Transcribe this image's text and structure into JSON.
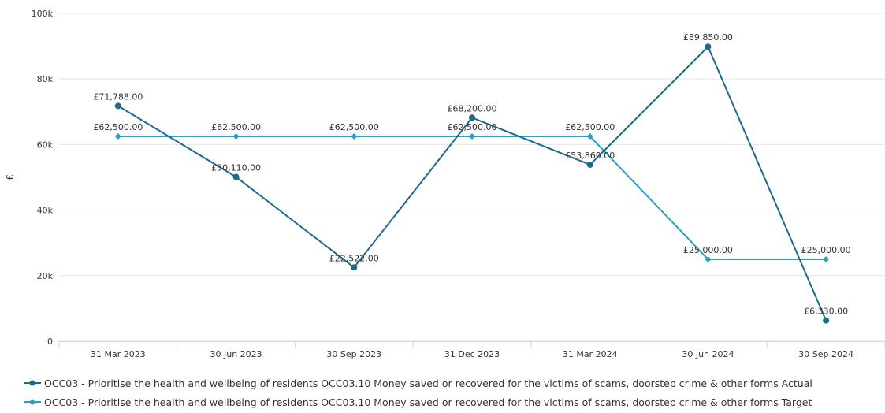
{
  "chart_data": {
    "type": "line",
    "title": "",
    "xlabel": "",
    "ylabel": "£",
    "categories": [
      "31 Mar 2023",
      "30 Jun 2023",
      "30 Sep 2023",
      "31 Dec 2023",
      "31 Mar 2024",
      "30 Jun 2024",
      "30 Sep 2024"
    ],
    "ylim": [
      0,
      100000
    ],
    "y_ticks": [
      0,
      20000,
      40000,
      60000,
      80000,
      100000
    ],
    "y_tick_labels": [
      "0",
      "20k",
      "40k",
      "60k",
      "80k",
      "100k"
    ],
    "grid": true,
    "legend_position": "bottom-left",
    "series": [
      {
        "name": "OCC03 - Prioritise the health and wellbeing of residents OCC03.10 Money saved or recovered for the victims of scams, doorstep crime & other forms Actual",
        "color": "#1f6a8c",
        "marker": "circle",
        "values": [
          71788,
          50110,
          22522,
          68200,
          53860,
          89850,
          6330
        ],
        "labels": [
          "£71,788.00",
          "£50,110.00",
          "£22,522.00",
          "£68,200.00",
          "£53,860.00",
          "£89,850.00",
          "£6,330.00"
        ]
      },
      {
        "name": "OCC03 - Prioritise the health and wellbeing of residents OCC03.10 Money saved or recovered for the victims of scams, doorstep crime & other forms Target",
        "color": "#2a9ec4",
        "marker": "diamond",
        "values": [
          62500,
          62500,
          62500,
          62500,
          62500,
          25000,
          25000
        ],
        "labels": [
          "£62,500.00",
          "£62,500.00",
          "£62,500.00",
          "£62,500.00",
          "£62,500.00",
          "£25,000.00",
          "£25,000.00"
        ]
      }
    ]
  }
}
